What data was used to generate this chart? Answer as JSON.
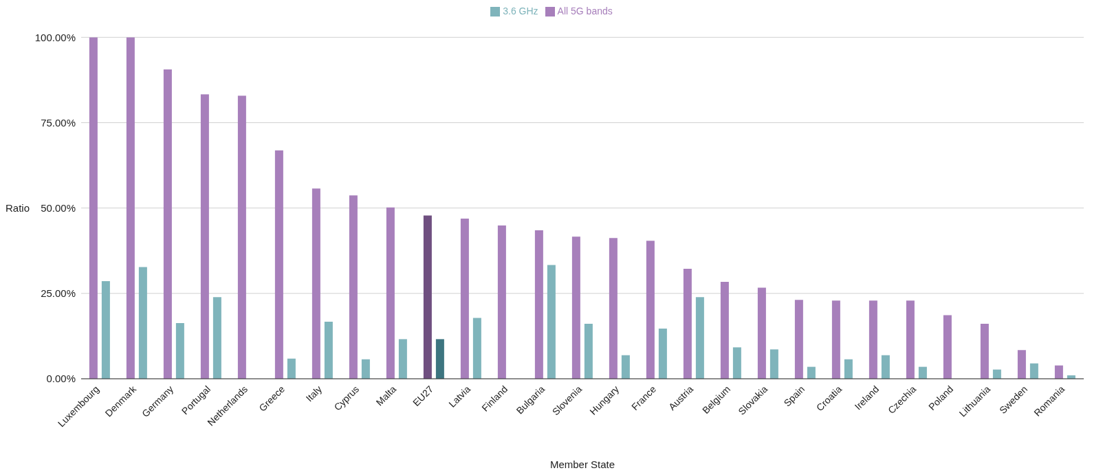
{
  "chart_data": {
    "type": "bar",
    "xlabel": "Member State",
    "ylabel": "Ratio",
    "categories": [
      "Luxembourg",
      "Denmark",
      "Germany",
      "Portugal",
      "Netherlands",
      "Greece",
      "Italy",
      "Cyprus",
      "Malta",
      "EU27",
      "Latvia",
      "Finland",
      "Bulgaria",
      "Slovenia",
      "Hungary",
      "France",
      "Austria",
      "Belgium",
      "Slovakia",
      "Spain",
      "Croatia",
      "Ireland",
      "Czechia",
      "Poland",
      "Lithuania",
      "Sweden",
      "Romania"
    ],
    "series": [
      {
        "name": "All 5G bands",
        "color": "#a77fbb",
        "colors": [
          "#a77fbb",
          "#a77fbb",
          "#a77fbb",
          "#a77fbb",
          "#a77fbb",
          "#a77fbb",
          "#a77fbb",
          "#a77fbb",
          "#a77fbb",
          "#6f4f80",
          "#a77fbb",
          "#a77fbb",
          "#a77fbb",
          "#a77fbb",
          "#a77fbb",
          "#a77fbb",
          "#a77fbb",
          "#a77fbb",
          "#a77fbb",
          "#a77fbb",
          "#a77fbb",
          "#a77fbb",
          "#a77fbb",
          "#a77fbb",
          "#a77fbb",
          "#a77fbb",
          "#a77fbb"
        ],
        "values": [
          100,
          100,
          90.6,
          83.3,
          82.9,
          66.9,
          55.7,
          53.7,
          50.2,
          47.8,
          46.9,
          44.9,
          43.5,
          41.6,
          41.2,
          40.4,
          32.2,
          28.4,
          26.7,
          23.1,
          22.9,
          22.9,
          22.9,
          18.6,
          16.1,
          8.4,
          3.9
        ]
      },
      {
        "name": "3.6 GHz",
        "color": "#7fb4bb",
        "colors": [
          "#7fb4bb",
          "#7fb4bb",
          "#7fb4bb",
          "#7fb4bb",
          "#7fb4bb",
          "#7fb4bb",
          "#7fb4bb",
          "#7fb4bb",
          "#7fb4bb",
          "#3d7580",
          "#7fb4bb",
          "#7fb4bb",
          "#7fb4bb",
          "#7fb4bb",
          "#7fb4bb",
          "#7fb4bb",
          "#7fb4bb",
          "#7fb4bb",
          "#7fb4bb",
          "#7fb4bb",
          "#7fb4bb",
          "#7fb4bb",
          "#7fb4bb",
          "#7fb4bb",
          "#7fb4bb",
          "#7fb4bb",
          "#7fb4bb"
        ],
        "values": [
          28.6,
          32.7,
          16.3,
          23.9,
          0,
          5.9,
          16.7,
          5.7,
          11.6,
          11.6,
          17.8,
          0,
          33.3,
          16.1,
          6.9,
          14.7,
          23.9,
          9.2,
          8.6,
          3.5,
          5.7,
          6.9,
          3.5,
          0,
          2.7,
          4.5,
          1.0
        ]
      }
    ],
    "ylim": [
      0,
      100
    ],
    "yticks": [
      {
        "value": 0,
        "label": "0.00%"
      },
      {
        "value": 25,
        "label": "25.00%"
      },
      {
        "value": 50,
        "label": "50.00%"
      },
      {
        "value": 75,
        "label": "75.00%"
      },
      {
        "value": 100,
        "label": "100.00%"
      }
    ],
    "grid": "y",
    "legend": "top"
  }
}
